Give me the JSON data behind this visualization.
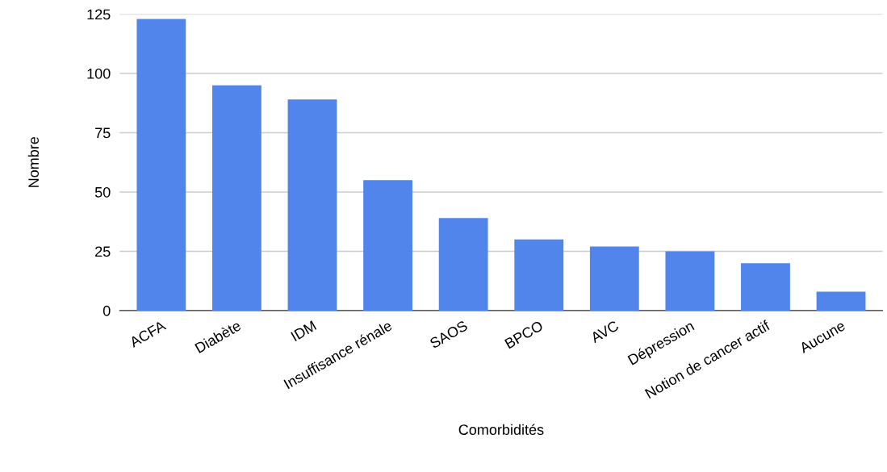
{
  "chart_data": {
    "type": "bar",
    "xlabel": "Comorbidités",
    "ylabel": "Nombre",
    "categories": [
      "ACFA",
      "Diabète",
      "IDM",
      "Insuffisance rénale",
      "SAOS",
      "BPCO",
      "AVC",
      "Dépression",
      "Notion de cancer actif",
      "Aucune"
    ],
    "values": [
      123,
      95,
      89,
      55,
      39,
      30,
      27,
      25,
      20,
      8
    ],
    "color": "#5185ec",
    "ylim": [
      0,
      125
    ],
    "yticks": [
      0,
      25,
      50,
      75,
      100,
      125
    ],
    "grid": "y",
    "legend": false
  }
}
